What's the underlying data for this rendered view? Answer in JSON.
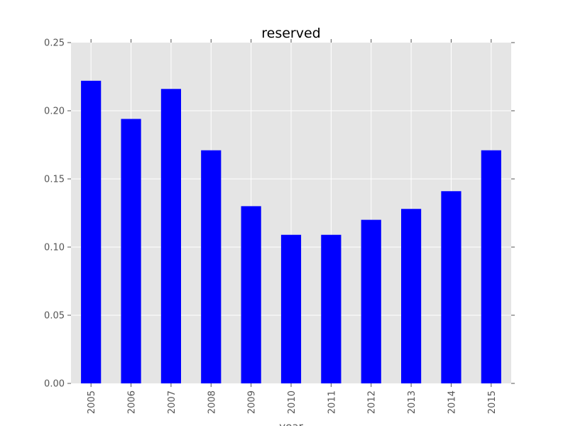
{
  "chart_data": {
    "type": "bar",
    "title": "reserved",
    "xlabel": "year",
    "ylabel": "",
    "categories": [
      "2005",
      "2006",
      "2007",
      "2008",
      "2009",
      "2010",
      "2011",
      "2012",
      "2013",
      "2014",
      "2015"
    ],
    "values": [
      0.222,
      0.194,
      0.216,
      0.171,
      0.13,
      0.109,
      0.109,
      0.12,
      0.128,
      0.141,
      0.171
    ],
    "ylim": [
      0,
      0.25
    ],
    "yticks": [
      "0.00",
      "0.05",
      "0.10",
      "0.15",
      "0.20",
      "0.25"
    ],
    "grid": true,
    "legend": "none",
    "colors": {
      "bar": "#0000ff",
      "plot_background": "#e5e5e5",
      "grid": "#ffffff",
      "tick_text": "#555555",
      "title_text": "#000000"
    }
  }
}
